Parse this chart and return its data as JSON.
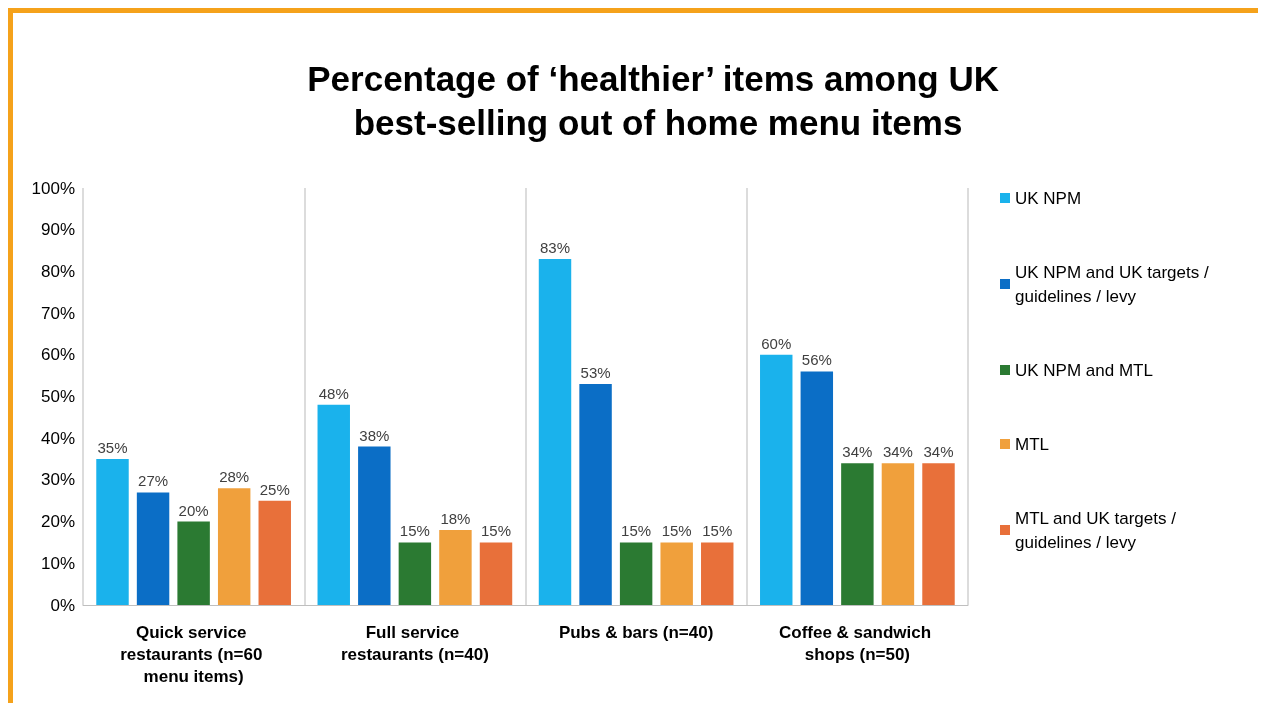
{
  "chart_data": {
    "type": "bar",
    "title": "Percentage of ‘healthier’ items among UK best-selling out of home menu items",
    "categories": [
      "Quick service restaurants (n=60 menu items)",
      "Full service restaurants (n=40)",
      "Pubs & bars (n=40)",
      "Coffee & sandwich shops (n=50)"
    ],
    "series": [
      {
        "name": "UK NPM",
        "color": "#1ab2ec",
        "values": [
          35,
          48,
          83,
          60
        ],
        "value_labels": [
          "35%",
          "48%",
          "83%",
          "60%"
        ]
      },
      {
        "name": "UK NPM and UK targets / guidelines / levy",
        "color": "#0b6ec6",
        "values": [
          27,
          38,
          53,
          56
        ],
        "value_labels": [
          "27%",
          "38%",
          "53%",
          "56%"
        ]
      },
      {
        "name": "UK NPM and MTL",
        "color": "#2b7a32",
        "values": [
          20,
          15,
          15,
          34
        ],
        "value_labels": [
          "20%",
          "15%",
          "15%",
          "34%"
        ]
      },
      {
        "name": "MTL",
        "color": "#f0a03c",
        "values": [
          28,
          18,
          15,
          34
        ],
        "value_labels": [
          "28%",
          "18%",
          "15%",
          "34%"
        ]
      },
      {
        "name": "MTL and UK targets / guidelines / levy",
        "color": "#e8703a",
        "values": [
          25,
          15,
          15,
          34
        ],
        "value_labels": [
          "25%",
          "15%",
          "15%",
          "34%"
        ]
      }
    ],
    "ylim": [
      0,
      100
    ],
    "yticks": [
      {
        "value": 0,
        "label": "0%"
      },
      {
        "value": 10,
        "label": "10%"
      },
      {
        "value": 20,
        "label": "20%"
      },
      {
        "value": 30,
        "label": "30%"
      },
      {
        "value": 40,
        "label": "40%"
      },
      {
        "value": 50,
        "label": "50%"
      },
      {
        "value": 60,
        "label": "60%"
      },
      {
        "value": 70,
        "label": "70%"
      },
      {
        "value": 80,
        "label": "80%"
      },
      {
        "value": 90,
        "label": "90%"
      },
      {
        "value": 100,
        "label": "100%"
      }
    ],
    "grid": "x",
    "legend": "right"
  }
}
